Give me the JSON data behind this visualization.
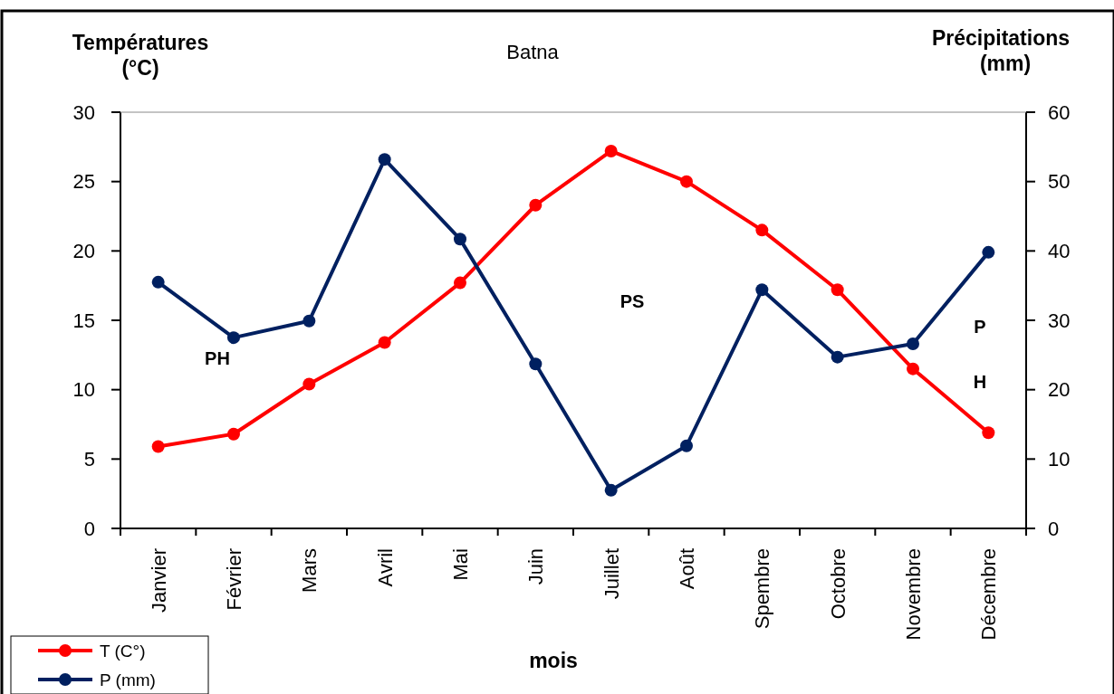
{
  "chart_data": {
    "type": "line",
    "title": "Batna",
    "xlabel": "mois",
    "ylabel": "Températures\n(°C)",
    "y2label": "Précipitations\n(mm)",
    "categories": [
      "Janvier",
      "Février",
      "Mars",
      "Avril",
      "Mai",
      "Juin",
      "Juillet",
      "Août",
      "Spembre",
      "Octobre",
      "Novembre",
      "Décembre"
    ],
    "series": [
      {
        "name": "T (C°)",
        "color": "#ff0000",
        "values": [
          5.9,
          6.8,
          10.4,
          13.4,
          17.7,
          23.3,
          27.2,
          25.0,
          21.5,
          17.2,
          11.5,
          6.9
        ]
      },
      {
        "name": "P (mm)",
        "color": "#002060",
        "axis": "y2",
        "values": [
          35.5,
          27.5,
          29.9,
          53.2,
          41.7,
          23.7,
          5.5,
          11.9,
          34.4,
          24.7,
          26.6,
          39.8
        ]
      }
    ],
    "ylim": [
      0,
      30
    ],
    "yticks": [
      0,
      5,
      10,
      15,
      20,
      25,
      30
    ],
    "y2lim": [
      0,
      60
    ],
    "y2ticks": [
      0,
      10,
      20,
      30,
      40,
      50,
      60
    ],
    "annotations": [
      "PH",
      "PS",
      "P",
      "H"
    ],
    "legend": "bottom left",
    "marker": "circle",
    "line_style": "solid",
    "grid": false
  }
}
